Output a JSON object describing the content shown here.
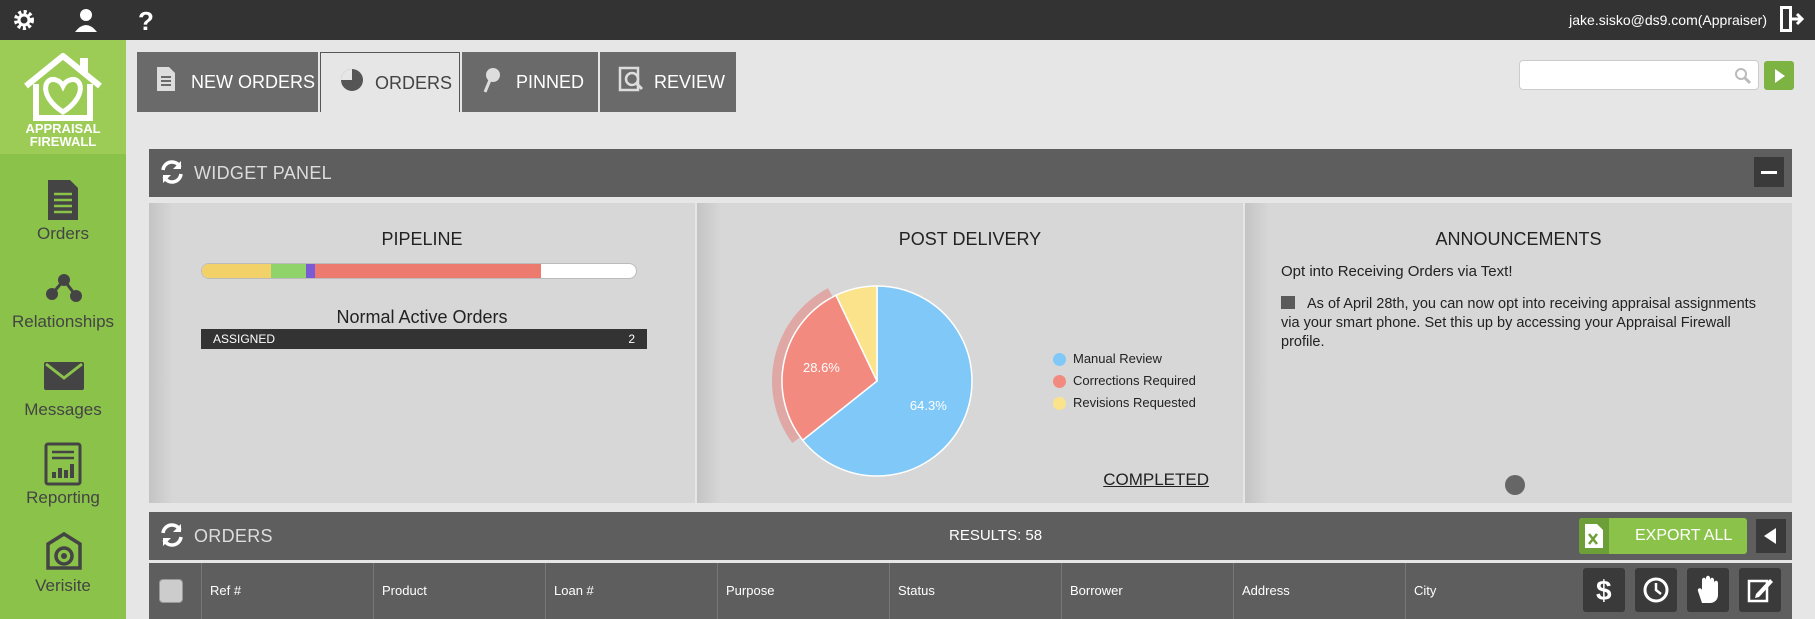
{
  "topbar": {
    "icons": [
      "gear-icon",
      "user-icon",
      "help-icon"
    ],
    "user_email": "jake.sisko@ds9.com(Appraiser)"
  },
  "logo": {
    "line1": "APPRAISAL",
    "line2": "FIREWALL"
  },
  "sidebar": {
    "items": [
      {
        "label": "Orders",
        "icon": "document-icon"
      },
      {
        "label": "Relationships",
        "icon": "relationships-icon"
      },
      {
        "label": "Messages",
        "icon": "envelope-icon"
      },
      {
        "label": "Reporting",
        "icon": "report-icon"
      },
      {
        "label": "Verisite",
        "icon": "camera-icon"
      }
    ]
  },
  "tabs": [
    {
      "label": "NEW ORDERS",
      "icon": "document-icon",
      "active": false
    },
    {
      "label": "ORDERS",
      "icon": "pie-icon",
      "active": true
    },
    {
      "label": "PINNED",
      "icon": "pin-icon",
      "active": false
    },
    {
      "label": "REVIEW",
      "icon": "review-icon",
      "active": false
    }
  ],
  "search": {
    "placeholder": "",
    "value": ""
  },
  "widget_panel": {
    "title": "WIDGET PANEL"
  },
  "pipeline": {
    "title": "PIPELINE",
    "segments": [
      {
        "color": "#f2d268",
        "fraction": 0.16
      },
      {
        "color": "#8fd36a",
        "fraction": 0.08
      },
      {
        "color": "#7b5ad6",
        "fraction": 0.02
      },
      {
        "color": "#ec7a6e",
        "fraction": 0.52
      }
    ],
    "active_title": "Normal Active Orders",
    "rows": [
      {
        "label": "ASSIGNED",
        "count": "2"
      }
    ]
  },
  "post_delivery": {
    "title": "POST DELIVERY",
    "completed_label": "COMPLETED"
  },
  "chart_data": {
    "type": "pie",
    "title": "POST DELIVERY",
    "slices": [
      {
        "name": "Manual Review",
        "value": 64.3,
        "label": "64.3%",
        "color": "#80c8f8"
      },
      {
        "name": "Corrections Required",
        "value": 28.6,
        "label": "28.6%",
        "color": "#f28a80"
      },
      {
        "name": "Revisions Requested",
        "value": 7.1,
        "label": "",
        "color": "#fae38a"
      }
    ],
    "legend_placement": "right"
  },
  "announcements": {
    "title": "ANNOUNCEMENTS",
    "subtitle": "Opt into Receiving Orders via Text!",
    "line1": "As of April 28th, you can now opt into receiving appraisal assignments",
    "line2": "via your smart phone. Set this up by accessing your Appraisal Firewall",
    "line3": "profile."
  },
  "orders_panel": {
    "title": "ORDERS",
    "results": "RESULTS: 58",
    "export_label": "EXPORT ALL"
  },
  "table": {
    "columns": [
      "Ref #",
      "Product",
      "Loan #",
      "Purpose",
      "Status",
      "Borrower",
      "Address",
      "City"
    ],
    "action_icons": [
      "dollar-icon",
      "clock-icon",
      "hand-icon",
      "edit-icon"
    ]
  },
  "colors": {
    "sidebar": "#8bc34a",
    "accent": "#7cb342",
    "dark": "#333333"
  }
}
